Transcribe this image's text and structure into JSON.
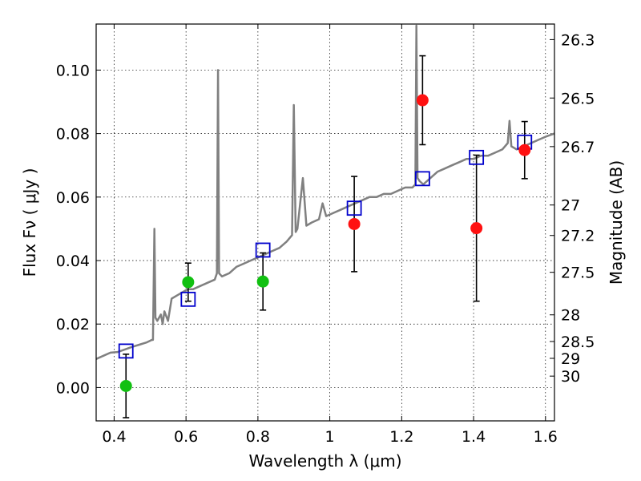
{
  "chart_data": {
    "type": "scatter",
    "xlabel": "Wavelength  λ (μm)",
    "ylabel": "Flux  Fν  ( μJy )",
    "y2label": "Magnitude (AB)",
    "xlim": [
      0.35,
      1.625
    ],
    "ylim": [
      -0.0105,
      0.1145
    ],
    "grid": true,
    "x_ticks": [
      {
        "value": 0.4,
        "label": "0.4"
      },
      {
        "value": 0.6,
        "label": "0.6"
      },
      {
        "value": 0.8,
        "label": "0.8"
      },
      {
        "value": 1.0,
        "label": "1"
      },
      {
        "value": 1.2,
        "label": "1.2"
      },
      {
        "value": 1.4,
        "label": "1.4"
      },
      {
        "value": 1.6,
        "label": "1.6"
      }
    ],
    "y_ticks": [
      {
        "value": 0.0,
        "label": "0.00"
      },
      {
        "value": 0.02,
        "label": "0.02"
      },
      {
        "value": 0.04,
        "label": "0.04"
      },
      {
        "value": 0.06,
        "label": "0.06"
      },
      {
        "value": 0.08,
        "label": "0.08"
      },
      {
        "value": 0.1,
        "label": "0.10"
      }
    ],
    "y2_ticks": [
      {
        "flux": 0.1096,
        "label": "26.3"
      },
      {
        "flux": 0.0912,
        "label": "26.5"
      },
      {
        "flux": 0.0759,
        "label": "26.7"
      },
      {
        "flux": 0.0575,
        "label": "27"
      },
      {
        "flux": 0.0479,
        "label": "27.2"
      },
      {
        "flux": 0.0363,
        "label": "27.5"
      },
      {
        "flux": 0.0229,
        "label": "28"
      },
      {
        "flux": 0.0145,
        "label": "28.5"
      },
      {
        "flux": 0.0092,
        "label": "29"
      },
      {
        "flux": 0.0036,
        "label": "30"
      }
    ],
    "colors": {
      "model": "#808080",
      "green": "#11c011",
      "red": "#ff1111",
      "square": "#0000cc",
      "errorbar": "#000000"
    },
    "model_spectrum": [
      [
        0.35,
        0.009
      ],
      [
        0.37,
        0.01
      ],
      [
        0.39,
        0.011
      ],
      [
        0.41,
        0.0112
      ],
      [
        0.43,
        0.012
      ],
      [
        0.45,
        0.0128
      ],
      [
        0.47,
        0.0135
      ],
      [
        0.49,
        0.0142
      ],
      [
        0.505,
        0.015
      ],
      [
        0.508,
        0.015
      ],
      [
        0.512,
        0.05
      ],
      [
        0.515,
        0.022
      ],
      [
        0.52,
        0.021
      ],
      [
        0.53,
        0.023
      ],
      [
        0.535,
        0.02
      ],
      [
        0.54,
        0.024
      ],
      [
        0.55,
        0.021
      ],
      [
        0.56,
        0.028
      ],
      [
        0.575,
        0.029
      ],
      [
        0.59,
        0.03
      ],
      [
        0.605,
        0.031
      ],
      [
        0.62,
        0.031
      ],
      [
        0.64,
        0.032
      ],
      [
        0.66,
        0.033
      ],
      [
        0.68,
        0.034
      ],
      [
        0.686,
        0.036
      ],
      [
        0.689,
        0.1
      ],
      [
        0.692,
        0.036
      ],
      [
        0.7,
        0.035
      ],
      [
        0.72,
        0.036
      ],
      [
        0.74,
        0.038
      ],
      [
        0.76,
        0.039
      ],
      [
        0.78,
        0.04
      ],
      [
        0.8,
        0.041
      ],
      [
        0.82,
        0.042
      ],
      [
        0.84,
        0.043
      ],
      [
        0.86,
        0.044
      ],
      [
        0.88,
        0.046
      ],
      [
        0.895,
        0.048
      ],
      [
        0.9,
        0.089
      ],
      [
        0.905,
        0.049
      ],
      [
        0.91,
        0.05
      ],
      [
        0.925,
        0.066
      ],
      [
        0.935,
        0.051
      ],
      [
        0.95,
        0.052
      ],
      [
        0.97,
        0.053
      ],
      [
        0.98,
        0.058
      ],
      [
        0.99,
        0.054
      ],
      [
        1.01,
        0.055
      ],
      [
        1.03,
        0.056
      ],
      [
        1.05,
        0.057
      ],
      [
        1.07,
        0.058
      ],
      [
        1.09,
        0.059
      ],
      [
        1.11,
        0.06
      ],
      [
        1.13,
        0.06
      ],
      [
        1.15,
        0.061
      ],
      [
        1.17,
        0.061
      ],
      [
        1.19,
        0.062
      ],
      [
        1.21,
        0.063
      ],
      [
        1.23,
        0.063
      ],
      [
        1.238,
        0.064
      ],
      [
        1.241,
        0.114
      ],
      [
        1.244,
        0.066
      ],
      [
        1.25,
        0.065
      ],
      [
        1.26,
        0.064
      ],
      [
        1.28,
        0.066
      ],
      [
        1.3,
        0.068
      ],
      [
        1.32,
        0.069
      ],
      [
        1.34,
        0.07
      ],
      [
        1.36,
        0.071
      ],
      [
        1.38,
        0.072
      ],
      [
        1.4,
        0.072
      ],
      [
        1.42,
        0.073
      ],
      [
        1.44,
        0.073
      ],
      [
        1.46,
        0.074
      ],
      [
        1.48,
        0.075
      ],
      [
        1.495,
        0.077
      ],
      [
        1.5,
        0.084
      ],
      [
        1.505,
        0.076
      ],
      [
        1.52,
        0.075
      ],
      [
        1.54,
        0.076
      ],
      [
        1.56,
        0.077
      ],
      [
        1.58,
        0.078
      ],
      [
        1.6,
        0.079
      ],
      [
        1.625,
        0.08
      ]
    ],
    "green_points": [
      {
        "x": 0.433,
        "y": 0.0005,
        "yerr_low": 0.01,
        "yerr_high": 0.01
      },
      {
        "x": 0.606,
        "y": 0.0332,
        "yerr_low": 0.006,
        "yerr_high": 0.006
      },
      {
        "x": 0.814,
        "y": 0.0334,
        "yerr_low": 0.009,
        "yerr_high": 0.009
      }
    ],
    "red_points": [
      {
        "x": 1.068,
        "y": 0.0515,
        "yerr_low": 0.015,
        "yerr_high": 0.015
      },
      {
        "x": 1.258,
        "y": 0.0905,
        "yerr_low": 0.014,
        "yerr_high": 0.014
      },
      {
        "x": 1.408,
        "y": 0.0502,
        "yerr_low": 0.023,
        "yerr_high": 0.023
      },
      {
        "x": 1.542,
        "y": 0.0748,
        "yerr_low": 0.009,
        "yerr_high": 0.009
      }
    ],
    "squares": [
      {
        "x": 0.433,
        "y": 0.0115
      },
      {
        "x": 0.606,
        "y": 0.0278
      },
      {
        "x": 0.814,
        "y": 0.0433
      },
      {
        "x": 1.068,
        "y": 0.0565
      },
      {
        "x": 1.258,
        "y": 0.0658
      },
      {
        "x": 1.408,
        "y": 0.0725
      },
      {
        "x": 1.542,
        "y": 0.0773
      }
    ]
  }
}
